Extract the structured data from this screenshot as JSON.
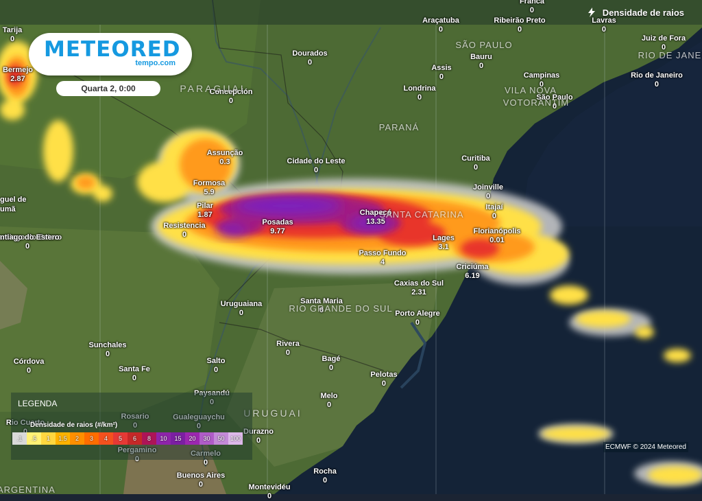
{
  "header": {
    "title": "Densidade de raios",
    "icon": "lightning-icon"
  },
  "brand": {
    "name": "METEORED",
    "site": "tempo.com"
  },
  "timestamp": "Quarta 2, 0:00",
  "legend": {
    "title": "LEGENDA",
    "subtitle": "Densidade de raios (#/km²)",
    "ticks": [
      {
        "label": ".1",
        "color": "#d9d9d9"
      },
      {
        "label": ".5",
        "color": "#fff176"
      },
      {
        "label": "1",
        "color": "#ffd740"
      },
      {
        "label": "1.5",
        "color": "#ffb300"
      },
      {
        "label": "2",
        "color": "#ff8f00"
      },
      {
        "label": "3",
        "color": "#ff6d00"
      },
      {
        "label": "4",
        "color": "#f4511e"
      },
      {
        "label": "5",
        "color": "#e53935"
      },
      {
        "label": "6",
        "color": "#c62828"
      },
      {
        "label": "8",
        "color": "#ad1457"
      },
      {
        "label": "10",
        "color": "#8e24aa"
      },
      {
        "label": "15",
        "color": "#7b1fa2"
      },
      {
        "label": "20",
        "color": "#9c27b0"
      },
      {
        "label": "30",
        "color": "#b05cc8"
      },
      {
        "label": "50",
        "color": "#c48ad8"
      },
      {
        "label": "100",
        "color": "#ddb8ea"
      }
    ]
  },
  "copyright": "ECMWF © 2024 Meteored",
  "cities": [
    {
      "name": "Franca",
      "value": "0"
    },
    {
      "name": "Tarija",
      "value": "0"
    },
    {
      "name": "Araçatuba",
      "value": "0"
    },
    {
      "name": "Ribeirão Preto",
      "value": "0"
    },
    {
      "name": "Lavras",
      "value": "0"
    },
    {
      "name": "Juiz de Fora",
      "value": "0"
    },
    {
      "name": "Bermejo",
      "value": "2.87"
    },
    {
      "name": "Dourados",
      "value": "0"
    },
    {
      "name": "Bauru",
      "value": "0"
    },
    {
      "name": "Assis",
      "value": "0"
    },
    {
      "name": "Campinas",
      "value": "0"
    },
    {
      "name": "Rio de Janeiro",
      "value": "0"
    },
    {
      "name": "Concepción",
      "value": "0"
    },
    {
      "name": "Londrina",
      "value": "0"
    },
    {
      "name": "São Paulo",
      "value": "0"
    },
    {
      "name": "Assunção",
      "value": "0.3"
    },
    {
      "name": "Cidade do Leste",
      "value": "0"
    },
    {
      "name": "Curitiba",
      "value": "0"
    },
    {
      "name": "Formosa",
      "value": "5.9"
    },
    {
      "name": "Joinville",
      "value": "0"
    },
    {
      "name": "Itajaí",
      "value": "0"
    },
    {
      "name": "Pilar",
      "value": "1.87"
    },
    {
      "name": "Chapecó",
      "value": "13.35"
    },
    {
      "name": "Resistencia",
      "value": "0"
    },
    {
      "name": "Posadas",
      "value": "9.77"
    },
    {
      "name": "Florianópolis",
      "value": "0.01"
    },
    {
      "name": "Lages",
      "value": "3.1"
    },
    {
      "name": "Passo Fundo",
      "value": "4"
    },
    {
      "name": "Criciúma",
      "value": "6.19"
    },
    {
      "name": "Caxias do Sul",
      "value": "2.31"
    },
    {
      "name": "Santiago do Estero",
      "value": "0"
    },
    {
      "name": "Santa Maria",
      "value": "0"
    },
    {
      "name": "Uruguaiana",
      "value": "0"
    },
    {
      "name": "Porto Alegre",
      "value": "0"
    },
    {
      "name": "Sunchales",
      "value": "0"
    },
    {
      "name": "Rivera",
      "value": "0"
    },
    {
      "name": "Córdova",
      "value": "0"
    },
    {
      "name": "Santa Fe",
      "value": "0"
    },
    {
      "name": "Salto",
      "value": "0"
    },
    {
      "name": "Bagé",
      "value": "0"
    },
    {
      "name": "Pelotas",
      "value": "0"
    },
    {
      "name": "Paysandú",
      "value": "0"
    },
    {
      "name": "Melo",
      "value": "0"
    },
    {
      "name": "Rosario",
      "value": "0"
    },
    {
      "name": "Gualeguaychu",
      "value": "0"
    },
    {
      "name": "Rio Cuarto",
      "value": "0"
    },
    {
      "name": "Durazno",
      "value": "0"
    },
    {
      "name": "Pergamino",
      "value": "0"
    },
    {
      "name": "Carmelo",
      "value": "0"
    },
    {
      "name": "Buenos Aires",
      "value": "0"
    },
    {
      "name": "Rocha",
      "value": "0"
    },
    {
      "name": "Montevidéu",
      "value": "0"
    }
  ],
  "regions": [
    "SÃO PAULO",
    "RIO DE JANEIRO",
    "PARAGUAI",
    "VILA NOVA",
    "VOTORANTIM",
    "PARANÁ",
    "SANTA CATARINA",
    "RIO GRANDE DO SUL",
    "URUGUAI",
    "ARGENTINA"
  ],
  "partial_labels": [
    "guel de",
    "umã",
    "ntiago do Estero"
  ]
}
